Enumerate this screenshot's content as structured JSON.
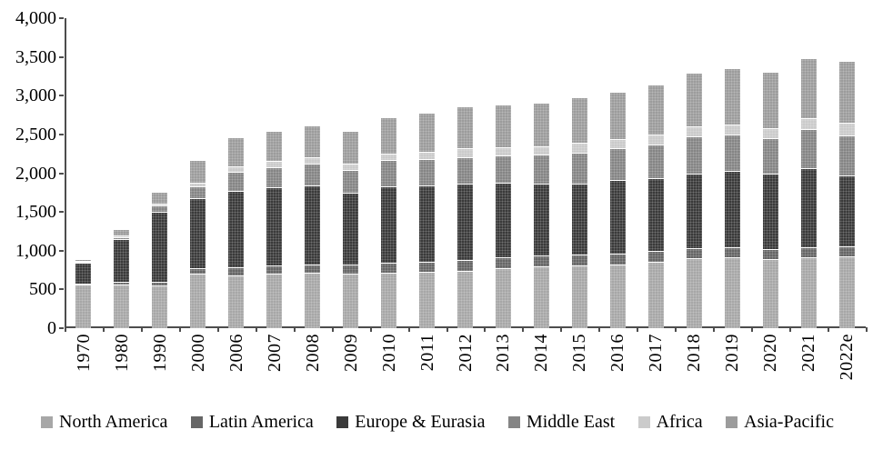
{
  "chart_data": {
    "type": "bar",
    "stacked": true,
    "title": "",
    "xlabel": "",
    "ylabel": "",
    "grid": false,
    "legend_position": "bottom",
    "ylim": [
      0,
      4000
    ],
    "yticks": [
      {
        "value": 0,
        "label": "0"
      },
      {
        "value": 500,
        "label": "500"
      },
      {
        "value": 1000,
        "label": "1,000"
      },
      {
        "value": 1500,
        "label": "1,500"
      },
      {
        "value": 2000,
        "label": "2,000"
      },
      {
        "value": 2500,
        "label": "2,500"
      },
      {
        "value": 3000,
        "label": "3,000"
      },
      {
        "value": 3500,
        "label": "3,500"
      },
      {
        "value": 4000,
        "label": "4,000"
      }
    ],
    "categories": [
      "1970",
      "1980",
      "1990",
      "2000",
      "2006",
      "2007",
      "2008",
      "2009",
      "2010",
      "2011",
      "2012",
      "2013",
      "2014",
      "2015",
      "2016",
      "2017",
      "2018",
      "2019",
      "2020",
      "2021",
      "2022e"
    ],
    "series": [
      {
        "name": "North America",
        "color": "#a7a7a7",
        "values": [
          560,
          565,
          550,
          700,
          680,
          700,
          710,
          705,
          715,
          730,
          745,
          775,
          800,
          805,
          820,
          860,
          900,
          910,
          890,
          910,
          925
        ]
      },
      {
        "name": "Latin America",
        "color": "#666666",
        "values": [
          20,
          32,
          50,
          80,
          106,
          110,
          115,
          111,
          126,
          127,
          135,
          138,
          143,
          150,
          142,
          140,
          130,
          137,
          129,
          135,
          132
        ]
      },
      {
        "name": "Europe & Eurasia",
        "color": "#3a3a3a",
        "values": [
          270,
          550,
          898,
          895,
          990,
          1005,
          1015,
          930,
          985,
          990,
          985,
          965,
          925,
          915,
          945,
          940,
          965,
          980,
          970,
          1020,
          915
        ]
      },
      {
        "name": "Middle East",
        "color": "#858585",
        "values": [
          12,
          32,
          85,
          158,
          244,
          260,
          281,
          292,
          340,
          333,
          345,
          355,
          372,
          400,
          415,
          430,
          475,
          476,
          465,
          505,
          520
        ]
      },
      {
        "name": "Africa",
        "color": "#cbcbcb",
        "values": [
          3,
          20,
          30,
          50,
          72,
          78,
          82,
          81,
          90,
          93,
          110,
          101,
          103,
          120,
          114,
          125,
          129,
          130,
          131,
          140,
          155
        ]
      },
      {
        "name": "Asia-Pacific",
        "color": "#9c9c9c",
        "values": [
          15,
          75,
          150,
          290,
          367,
          392,
          410,
          426,
          470,
          511,
          545,
          554,
          565,
          585,
          615,
          645,
          700,
          720,
          719,
          770,
          805
        ]
      }
    ]
  }
}
